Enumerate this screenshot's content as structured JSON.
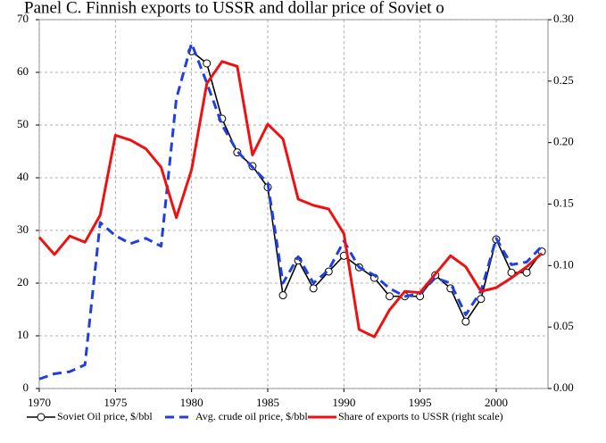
{
  "chart_data": {
    "type": "line",
    "title": "Panel C. Finnish exports to USSR and dollar price of Soviet o",
    "x": [
      1970,
      1971,
      1972,
      1973,
      1974,
      1975,
      1976,
      1977,
      1978,
      1979,
      1980,
      1981,
      1982,
      1983,
      1984,
      1985,
      1986,
      1987,
      1988,
      1989,
      1990,
      1991,
      1992,
      1993,
      1994,
      1995,
      1996,
      1997,
      1998,
      1999,
      2000,
      2001,
      2002,
      2003
    ],
    "series": [
      {
        "name": "Soviet Oil price, $/bbl",
        "color": "#000000",
        "marker": "circle",
        "values": [
          null,
          null,
          null,
          null,
          null,
          null,
          null,
          null,
          null,
          null,
          64,
          61.7,
          51.2,
          44.8,
          42.2,
          38.2,
          17.7,
          24.3,
          19,
          22.2,
          25.2,
          23,
          21,
          17.5,
          17.5,
          17.5,
          21.5,
          19,
          12.7,
          17,
          28.3,
          22,
          22,
          26
        ]
      },
      {
        "name": "Avg. crude oil price, $/bbl",
        "color": "#1f3fe0",
        "dash": true,
        "values": [
          1.8,
          2.8,
          3.2,
          4.5,
          31.5,
          29,
          27.5,
          28.5,
          27,
          55,
          65.5,
          58,
          50,
          45,
          42,
          39,
          20,
          25,
          20,
          22.5,
          28,
          23,
          21.5,
          19,
          17.5,
          18,
          21,
          20,
          14,
          18.5,
          28.5,
          23.5,
          24,
          27
        ]
      },
      {
        "name": "Share of exports to USSR (right scale)",
        "color": "#ee1111",
        "axis": "y2",
        "values": [
          0.123,
          0.109,
          0.124,
          0.119,
          0.141,
          0.206,
          0.202,
          0.195,
          0.18,
          0.139,
          0.178,
          0.248,
          0.266,
          0.262,
          0.19,
          0.215,
          0.203,
          0.154,
          0.149,
          0.146,
          0.126,
          0.048,
          0.042,
          0.064,
          0.079,
          0.078,
          0.093,
          0.108,
          0.099,
          0.079,
          0.082,
          0.09,
          0.099,
          0.11
        ]
      }
    ],
    "xlim": [
      1970,
      2003.4
    ],
    "xticks": [
      1970,
      1975,
      1980,
      1985,
      1990,
      1995,
      2000
    ],
    "ylim": [
      0,
      70
    ],
    "yticks": [
      0,
      10,
      20,
      30,
      40,
      50,
      60,
      70
    ],
    "y2lim": [
      0,
      0.3
    ],
    "y2ticks": [
      {
        "value": 0,
        "label": "0.00"
      },
      {
        "value": 0.05,
        "label": "0.05"
      },
      {
        "value": 0.1,
        "label": "0.10"
      },
      {
        "value": 0.15,
        "label": "0.15"
      },
      {
        "value": 0.2,
        "label": "0.20"
      },
      {
        "value": 0.25,
        "label": "0.25"
      },
      {
        "value": 0.3,
        "label": "0.30"
      }
    ],
    "grid": true,
    "legend": "bottom"
  }
}
